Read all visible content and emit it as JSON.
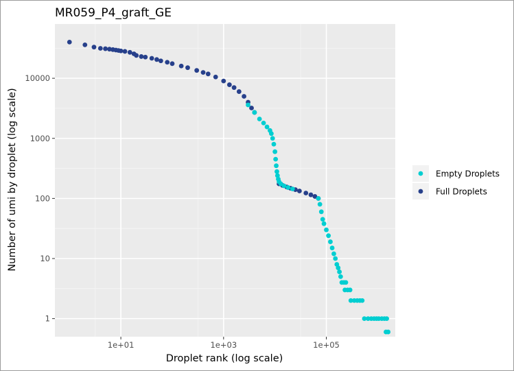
{
  "chart_data": {
    "type": "scatter",
    "title": "MR059_P4_graft_GE",
    "xlabel": "Droplet rank (log scale)",
    "ylabel": "Number of umi by droplet (log scale)",
    "x_scale": "log10",
    "y_scale": "log10",
    "xlim": [
      0.52,
      2200000
    ],
    "ylim": [
      0.5,
      80000
    ],
    "x_ticks": [
      {
        "value": 10,
        "label": "1e+01"
      },
      {
        "value": 1000,
        "label": "1e+03"
      },
      {
        "value": 100000,
        "label": "1e+05"
      }
    ],
    "y_ticks": [
      {
        "value": 1,
        "label": "1"
      },
      {
        "value": 10,
        "label": "10"
      },
      {
        "value": 100,
        "label": "100"
      },
      {
        "value": 1000,
        "label": "1000"
      },
      {
        "value": 10000,
        "label": "10000"
      }
    ],
    "grid": true,
    "background": "#ebebeb",
    "legend": {
      "position": "right",
      "entries": [
        {
          "name": "Empty Droplets",
          "color": "#00ced1"
        },
        {
          "name": "Full Droplets",
          "color": "#27408b"
        }
      ]
    },
    "series": [
      {
        "name": "Full Droplets",
        "color": "#27408b",
        "points": [
          [
            1,
            40000
          ],
          [
            2,
            36000
          ],
          [
            3,
            33000
          ],
          [
            4,
            31500
          ],
          [
            5,
            31000
          ],
          [
            6,
            30500
          ],
          [
            7,
            30000
          ],
          [
            8,
            29500
          ],
          [
            9,
            29000
          ],
          [
            10,
            28500
          ],
          [
            12,
            28000
          ],
          [
            15,
            27000
          ],
          [
            18,
            25500
          ],
          [
            20,
            24000
          ],
          [
            25,
            23000
          ],
          [
            30,
            22500
          ],
          [
            40,
            21500
          ],
          [
            50,
            20500
          ],
          [
            60,
            19500
          ],
          [
            80,
            18500
          ],
          [
            100,
            17500
          ],
          [
            150,
            16000
          ],
          [
            200,
            15000
          ],
          [
            300,
            13500
          ],
          [
            400,
            12500
          ],
          [
            500,
            11800
          ],
          [
            700,
            10500
          ],
          [
            1000,
            9000
          ],
          [
            1300,
            7800
          ],
          [
            1600,
            7000
          ],
          [
            2000,
            6000
          ],
          [
            2500,
            5000
          ],
          [
            3000,
            4000
          ],
          [
            3500,
            3200
          ],
          [
            4000,
            2700
          ],
          [
            12000,
            175
          ],
          [
            14000,
            165
          ],
          [
            17000,
            155
          ],
          [
            20000,
            148
          ],
          [
            25000,
            140
          ],
          [
            30000,
            133
          ],
          [
            40000,
            123
          ],
          [
            50000,
            115
          ],
          [
            60000,
            108
          ],
          [
            70000,
            100
          ]
        ]
      },
      {
        "name": "Empty Droplets",
        "color": "#00ced1",
        "points": [
          [
            3000,
            3600
          ],
          [
            4000,
            2700
          ],
          [
            5000,
            2100
          ],
          [
            6000,
            1800
          ],
          [
            7000,
            1550
          ],
          [
            8000,
            1350
          ],
          [
            8500,
            1200
          ],
          [
            9000,
            1000
          ],
          [
            9500,
            800
          ],
          [
            10000,
            600
          ],
          [
            10300,
            450
          ],
          [
            10600,
            350
          ],
          [
            10900,
            280
          ],
          [
            11200,
            240
          ],
          [
            11600,
            210
          ],
          [
            12000,
            190
          ],
          [
            13000,
            175
          ],
          [
            15000,
            162
          ],
          [
            18000,
            152
          ],
          [
            22000,
            144
          ],
          [
            70000,
            100
          ],
          [
            75000,
            80
          ],
          [
            80000,
            60
          ],
          [
            85000,
            45
          ],
          [
            90000,
            38
          ],
          [
            100000,
            30
          ],
          [
            110000,
            24
          ],
          [
            120000,
            19
          ],
          [
            130000,
            15
          ],
          [
            140000,
            12
          ],
          [
            150000,
            10
          ],
          [
            160000,
            8
          ],
          [
            170000,
            7
          ],
          [
            180000,
            6
          ],
          [
            190000,
            5
          ],
          [
            200000,
            4
          ],
          [
            220000,
            4
          ],
          [
            240000,
            4
          ],
          [
            230000,
            3
          ],
          [
            260000,
            3
          ],
          [
            290000,
            3
          ],
          [
            300000,
            2
          ],
          [
            350000,
            2
          ],
          [
            400000,
            2
          ],
          [
            450000,
            2
          ],
          [
            500000,
            2
          ],
          [
            550000,
            1
          ],
          [
            650000,
            1
          ],
          [
            750000,
            1
          ],
          [
            850000,
            1
          ],
          [
            950000,
            1
          ],
          [
            1050000,
            1
          ],
          [
            1200000,
            1
          ],
          [
            1350000,
            1
          ],
          [
            1500000,
            1
          ],
          [
            1450000,
            0.6
          ],
          [
            1600000,
            0.6
          ]
        ]
      }
    ]
  }
}
